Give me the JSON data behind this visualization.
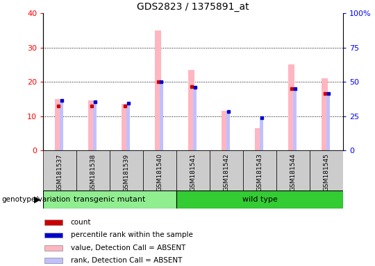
{
  "title": "GDS2823 / 1375891_at",
  "samples": [
    "GSM181537",
    "GSM181538",
    "GSM181539",
    "GSM181540",
    "GSM181541",
    "GSM181542",
    "GSM181543",
    "GSM181544",
    "GSM181545"
  ],
  "absent_value_values": [
    15.0,
    14.5,
    13.5,
    35.0,
    23.5,
    11.5,
    6.5,
    25.0,
    21.0
  ],
  "absent_rank_values": [
    36.5,
    35.5,
    34.5,
    50.0,
    46.0,
    28.5,
    23.5,
    45.0,
    41.5
  ],
  "count_values": [
    13.0,
    13.0,
    13.0,
    20.0,
    18.5,
    0,
    0,
    18.0,
    16.5
  ],
  "rank_values": [
    36.5,
    35.5,
    34.5,
    50.0,
    46.0,
    28.5,
    23.5,
    45.0,
    41.5
  ],
  "groups": [
    {
      "label": "transgenic mutant",
      "start": 0,
      "end": 4,
      "color": "#90EE90"
    },
    {
      "label": "wild type",
      "start": 4,
      "end": 9,
      "color": "#33CC33"
    }
  ],
  "ylim_left": [
    0,
    40
  ],
  "ylim_right": [
    0,
    100
  ],
  "yticks_left": [
    0,
    10,
    20,
    30,
    40
  ],
  "ytick_labels_right": [
    "0",
    "25",
    "50",
    "75",
    "100%"
  ],
  "absent_bar_color": "#FFB6C1",
  "absent_rank_color": "#C0C0FF",
  "count_color": "#CC0000",
  "rank_color": "#0000CC",
  "sample_box_color": "#CCCCCC",
  "genotype_label": "genotype/variation",
  "legend_items": [
    {
      "label": "count",
      "color": "#CC0000"
    },
    {
      "label": "percentile rank within the sample",
      "color": "#0000CC"
    },
    {
      "label": "value, Detection Call = ABSENT",
      "color": "#FFB6C1"
    },
    {
      "label": "rank, Detection Call = ABSENT",
      "color": "#C0C0FF"
    }
  ]
}
